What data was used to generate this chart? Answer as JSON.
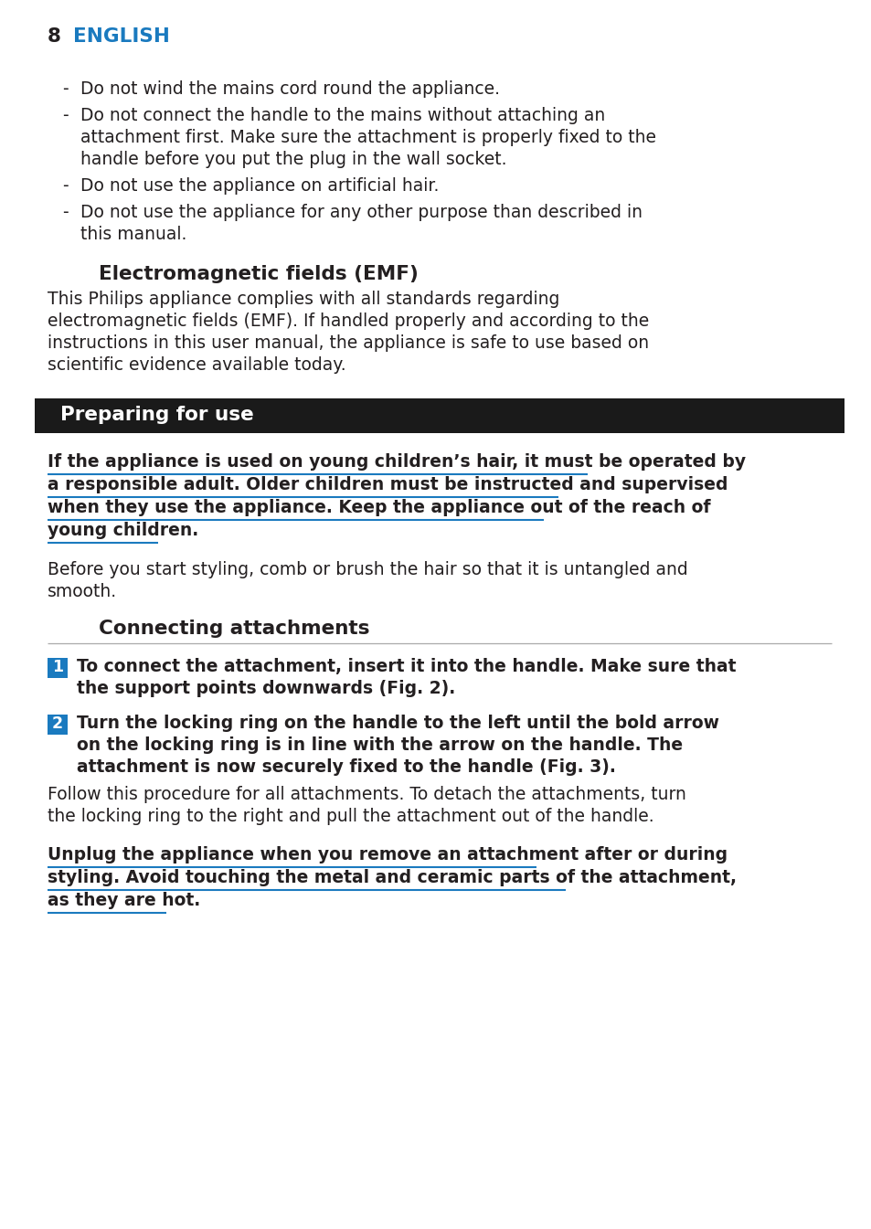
{
  "page_number": "8",
  "header_text": "ENGLISH",
  "header_color": "#1a7abf",
  "background_color": "#ffffff",
  "text_color": "#231f20",
  "blue_color": "#1a7abf",
  "section_banner_bg": "#1a1a1a",
  "section_banner_text_color": "#ffffff",
  "section_banner_text": "Preparing for use",
  "connecting_title": "Connecting attachments",
  "emf_title": "Electromagnetic fields (EMF)",
  "warning_lines": [
    "If the appliance is used on young children’s hair, it must be operated by",
    "a responsible adult. Older children must be instructed and supervised",
    "when they use the appliance. Keep the appliance out of the reach of",
    "young children."
  ],
  "warning2_lines": [
    "Unplug the appliance when you remove an attachment after or during",
    "styling. Avoid touching the metal and ceramic parts of the attachment,",
    "as they are hot."
  ],
  "bullet_items": [
    [
      "Do not wind the mains cord round the appliance."
    ],
    [
      "Do not connect the handle to the mains without attaching an",
      "attachment first. Make sure the attachment is properly fixed to the",
      "handle before you put the plug in the wall socket."
    ],
    [
      "Do not use the appliance on artificial hair."
    ],
    [
      "Do not use the appliance for any other purpose than described in",
      "this manual."
    ]
  ],
  "emf_body_lines": [
    "This Philips appliance complies with all standards regarding",
    "electromagnetic fields (EMF). If handled properly and according to the",
    "instructions in this user manual, the appliance is safe to use based on",
    "scientific evidence available today."
  ],
  "before_lines": [
    "Before you start styling, comb or brush the hair so that it is untangled and",
    "smooth."
  ],
  "step1_lines": [
    "To connect the attachment, insert it into the handle. Make sure that",
    "the support points downwards (Fig. 2)."
  ],
  "step2_lines": [
    "Turn the locking ring on the handle to the left until the bold arrow",
    "on the locking ring is in line with the arrow on the handle. The",
    "attachment is now securely fixed to the handle (Fig. 3)."
  ],
  "follow_lines": [
    "Follow this procedure for all attachments. To detach the attachments, turn",
    "the locking ring to the right and pull the attachment out of the handle."
  ]
}
